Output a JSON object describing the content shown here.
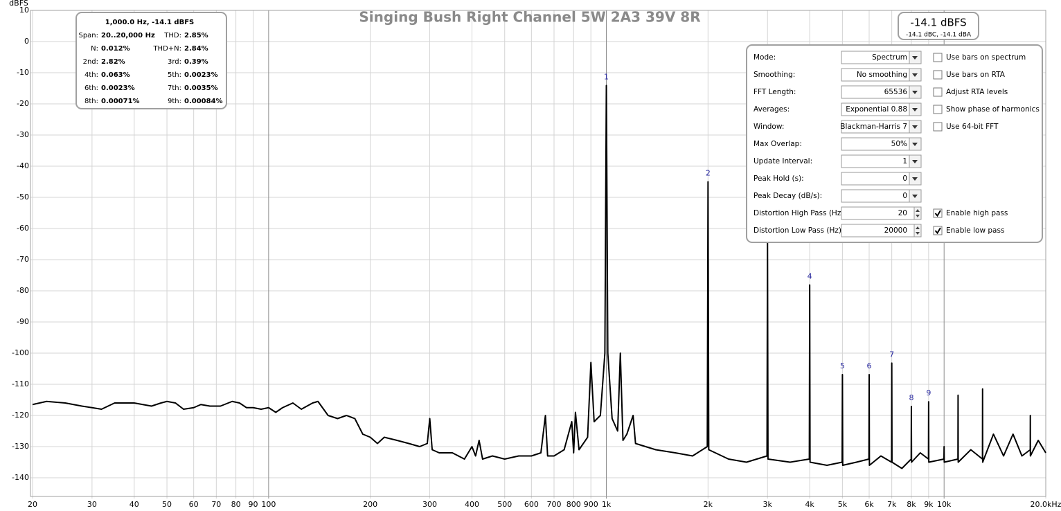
{
  "chart_data": {
    "type": "line",
    "title": "Singing Bush Right Channel 5W 2A3  39V 8R",
    "y_label": "dBFS",
    "log_x": true,
    "grid": true,
    "color": "#000000",
    "xlim": [
      20,
      20000
    ],
    "ylim": [
      -146,
      10
    ],
    "xticks": [
      20,
      30,
      40,
      50,
      60,
      70,
      80,
      90,
      100,
      200,
      300,
      400,
      500,
      600,
      700,
      800,
      900,
      {
        "value": 1000,
        "label": "1k"
      },
      {
        "value": 2000,
        "label": "2k"
      },
      {
        "value": 3000,
        "label": "3k"
      },
      {
        "value": 4000,
        "label": "4k"
      },
      {
        "value": 5000,
        "label": "5k"
      },
      {
        "value": 6000,
        "label": "6k"
      },
      {
        "value": 7000,
        "label": "7k"
      },
      {
        "value": 8000,
        "label": "8k"
      },
      {
        "value": 9000,
        "label": "9k"
      },
      {
        "value": 10000,
        "label": "10k"
      },
      {
        "value": 20000,
        "label": "20.0kHz"
      }
    ],
    "yticks": [
      10,
      0,
      -10,
      -20,
      -30,
      -40,
      -50,
      -60,
      -70,
      -80,
      -90,
      -100,
      -110,
      -120,
      -130,
      -140
    ],
    "x": [
      20,
      22,
      25,
      28,
      30,
      32,
      35,
      40,
      45,
      48,
      50,
      53,
      56,
      60,
      63,
      67,
      72,
      78,
      82,
      86,
      90,
      95,
      100,
      105,
      110,
      118,
      125,
      135,
      140,
      150,
      160,
      170,
      180,
      190,
      200,
      210,
      220,
      240,
      260,
      280,
      295,
      300,
      305,
      320,
      350,
      380,
      400,
      410,
      420,
      430,
      460,
      500,
      550,
      600,
      640,
      660,
      670,
      700,
      750,
      790,
      800,
      810,
      830,
      880,
      900,
      920,
      960,
      990,
      1000,
      1010,
      1040,
      1080,
      1100,
      1120,
      1150,
      1200,
      1220,
      1400,
      1600,
      1800,
      1990,
      2000,
      2010,
      2300,
      2600,
      2990,
      3000,
      3010,
      3500,
      3990,
      4000,
      4010,
      4500,
      4990,
      5000,
      5010,
      5500,
      5990,
      6000,
      6010,
      6500,
      6990,
      7000,
      7010,
      7500,
      7990,
      8000,
      8010,
      8500,
      8990,
      9000,
      9010,
      9990,
      10000,
      10010,
      10990,
      11000,
      11010,
      12000,
      12990,
      13000,
      13010,
      14000,
      15000,
      16000,
      17000,
      17990,
      18000,
      18010,
      19000,
      20000
    ],
    "values": [
      -116.5,
      -115.5,
      -116,
      -117,
      -117.5,
      -118,
      -116,
      -116,
      -117,
      -116,
      -115.5,
      -116,
      -118,
      -117.5,
      -116.5,
      -117,
      -117,
      -115.5,
      -116,
      -117.5,
      -117.5,
      -118,
      -117.5,
      -119,
      -117.5,
      -116,
      -118,
      -116,
      -115.5,
      -120,
      -121,
      -120,
      -121,
      -126,
      -127,
      -129,
      -127,
      -128,
      -129,
      -130,
      -129,
      -121,
      -131,
      -132,
      -132,
      -134,
      -130,
      -133,
      -128,
      -134,
      -133,
      -134,
      -133,
      -133,
      -132,
      -120,
      -133,
      -133,
      -131,
      -122,
      -132,
      -119,
      -131,
      -127,
      -103,
      -122,
      -120,
      -100,
      -14.1,
      -100,
      -121,
      -125,
      -100,
      -128,
      -126,
      -120,
      -129,
      -131,
      -132,
      -133,
      -130,
      -45,
      -131,
      -134,
      -135,
      -133,
      -62.3,
      -134,
      -135,
      -134,
      -78.1,
      -135,
      -136,
      -135,
      -106.9,
      -136,
      -135,
      -134,
      -106.9,
      -136,
      -133,
      -135,
      -103.2,
      -135,
      -137,
      -134,
      -117.1,
      -135,
      -132,
      -134,
      -115.6,
      -135,
      -134,
      -130,
      -135,
      -134,
      -113.5,
      -135,
      -131,
      -134,
      -111.5,
      -135,
      -126,
      -133,
      -126,
      -133,
      -131,
      -120,
      -133,
      -128,
      -132
    ],
    "annotations": [
      {
        "text": "1",
        "x": 1000,
        "y": -14.1
      },
      {
        "text": "2",
        "x": 2000,
        "y": -45
      },
      {
        "text": "4",
        "x": 4000,
        "y": -78.1
      },
      {
        "text": "5",
        "x": 5000,
        "y": -106.9
      },
      {
        "text": "6",
        "x": 6000,
        "y": -106.9
      },
      {
        "text": "7",
        "x": 7000,
        "y": -103.2
      },
      {
        "text": "8",
        "x": 8000,
        "y": -117.1
      },
      {
        "text": "9",
        "x": 9000,
        "y": -115.6
      }
    ]
  },
  "info_box": {
    "title": "1,000.0 Hz, -14.1 dBFS",
    "rows": [
      [
        "Span:",
        "20..20,000 Hz",
        "THD:",
        "2.85%"
      ],
      [
        "N:",
        "0.012%",
        "THD+N:",
        "2.84%"
      ],
      [
        "2nd:",
        "2.82%",
        "3rd:",
        "0.39%"
      ],
      [
        "4th:",
        "0.063%",
        "5th:",
        "0.0023%"
      ],
      [
        "6th:",
        "0.0023%",
        "7th:",
        "0.0035%"
      ],
      [
        "8th:",
        "0.00071%",
        "9th:",
        "0.00084%"
      ]
    ]
  },
  "level_meter": {
    "level": "-14.1 dBFS",
    "weighted": "-14.1 dBC, -14.1 dBA"
  },
  "controls": [
    {
      "label": "Mode:",
      "value": "Spectrum",
      "control": "dropdown",
      "option": {
        "label": "Use bars on spectrum",
        "checked": false
      }
    },
    {
      "label": "Smoothing:",
      "value": "No  smoothing",
      "control": "dropdown",
      "option": {
        "label": "Use bars on RTA",
        "checked": false
      }
    },
    {
      "label": "FFT Length:",
      "value": "65536",
      "control": "dropdown",
      "option": {
        "label": "Adjust RTA levels",
        "checked": false
      }
    },
    {
      "label": "Averages:",
      "value": "Exponential 0.88",
      "control": "dropdown",
      "option": {
        "label": "Show phase of harmonics",
        "checked": false
      }
    },
    {
      "label": "Window:",
      "value": "Blackman-Harris 7",
      "control": "dropdown",
      "option": {
        "label": "Use 64-bit FFT",
        "checked": false
      }
    },
    {
      "label": "Max Overlap:",
      "value": "50%",
      "control": "dropdown"
    },
    {
      "label": "Update Interval:",
      "value": "1",
      "control": "dropdown"
    },
    {
      "label": "Peak Hold (s):",
      "value": "0",
      "control": "dropdown"
    },
    {
      "label": "Peak Decay (dB/s):",
      "value": "0",
      "control": "dropdown"
    },
    {
      "label": "Distortion High Pass (Hz):",
      "value": "20",
      "control": "spinner",
      "option": {
        "label": "Enable high pass",
        "checked": true
      }
    },
    {
      "label": "Distortion Low Pass (Hz):",
      "value": "20000",
      "control": "spinner",
      "option": {
        "label": "Enable low pass",
        "checked": true
      }
    }
  ]
}
